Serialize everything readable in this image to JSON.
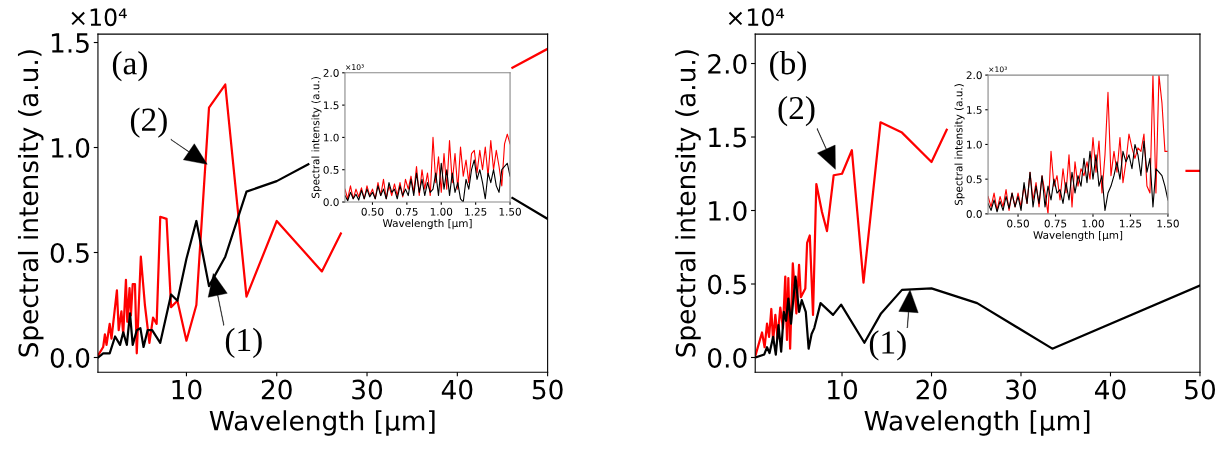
{
  "chart_data": [
    {
      "type": "line",
      "xlabel": "Wavelength [μm]",
      "ylabel": "Spectral intensity (a.u.)",
      "xlim": [
        0.2,
        50
      ],
      "ylim": [
        -0.07,
        1.54
      ],
      "xticks": [
        10,
        20,
        30,
        40,
        50
      ],
      "yticks": [
        {
          "value": 0,
          "label": "0.0"
        },
        {
          "value": 0.5,
          "label": "0.5"
        },
        {
          "value": 1,
          "label": "1.0"
        },
        {
          "value": 1.5,
          "label": "1.5"
        }
      ],
      "grid": false,
      "marker": "none",
      "line_style": "solid",
      "annotations": [
        "×10⁴",
        "(a)",
        {
          "text": "(2)",
          "x": 12.3,
          "y": 0.92
        },
        {
          "text": "(1)",
          "x": 12.97,
          "y": 0.4
        }
      ],
      "series": [
        {
          "color": "#ff0000",
          "x": [
            0.22,
            0.78,
            0.97,
            1.15,
            1.5,
            1.7,
            2.3,
            2.5,
            2.8,
            3.0,
            3.3,
            3.45,
            3.7,
            3.85,
            4.05,
            4.3,
            4.5,
            4.95,
            5.4,
            5.9,
            6.3,
            6.7,
            7.1,
            7.8,
            8.3,
            9.0,
            10.0,
            11.1,
            12.5,
            14.3,
            16.65,
            20.0,
            25.0,
            27.1,
            33.0,
            46.1,
            50.0
          ],
          "values": [
            0.01,
            0.05,
            0.11,
            0.06,
            0.16,
            0.09,
            0.32,
            0.13,
            0.22,
            0.11,
            0.37,
            0.17,
            0.33,
            0.2,
            0.35,
            0.35,
            0.02,
            0.48,
            0.25,
            0.07,
            0.19,
            0.16,
            0.67,
            0.66,
            0.24,
            0.27,
            0.08,
            0.25,
            1.19,
            1.3,
            0.29,
            0.65,
            0.41,
            0.59,
            null,
            1.38,
            1.47
          ]
        },
        {
          "color": "#000000",
          "x": [
            0.22,
            0.78,
            1.5,
            2.1,
            2.65,
            3.0,
            3.4,
            3.75,
            4.05,
            4.5,
            4.9,
            5.25,
            5.7,
            6.2,
            7.1,
            8.3,
            9.0,
            10.0,
            11.1,
            12.5,
            14.3,
            16.65,
            20.0,
            23.5,
            33.0,
            46.1,
            50.0
          ],
          "values": [
            0.0,
            0.02,
            0.02,
            0.1,
            0.06,
            0.12,
            0.06,
            0.21,
            0.06,
            0.13,
            0.14,
            0.05,
            0.13,
            0.13,
            0.07,
            0.3,
            0.27,
            0.47,
            0.65,
            0.34,
            0.48,
            0.79,
            0.84,
            0.92,
            null,
            0.76,
            0.66
          ]
        }
      ]
    },
    {
      "type": "line",
      "xlabel": "Wavelength [μm]",
      "ylabel": "Spectral intensity (a.u.)",
      "xlim": [
        0.3,
        1.5
      ],
      "ylim": [
        0,
        2.0
      ],
      "xticks": [
        {
          "value": 0.5,
          "label": "0.50"
        },
        {
          "value": 0.75,
          "label": "0.75"
        },
        {
          "value": 1.0,
          "label": "1.00"
        },
        {
          "value": 1.25,
          "label": "1.25"
        },
        {
          "value": 1.5,
          "label": "1.50"
        }
      ],
      "yticks": [
        {
          "value": 0,
          "label": "0.0"
        },
        {
          "value": 0.5,
          "label": "0.5"
        },
        {
          "value": 1,
          "label": "1.0"
        },
        {
          "value": 1.5,
          "label": "1.5"
        },
        {
          "value": 2,
          "label": "2.0"
        }
      ],
      "grid": false,
      "marker": "none",
      "line_style": "solid",
      "annotations": [
        "×10³"
      ],
      "series": [
        {
          "color": "#ff0000",
          "x": [
            0.3,
            0.32,
            0.34,
            0.36,
            0.38,
            0.4,
            0.42,
            0.44,
            0.46,
            0.48,
            0.5,
            0.52,
            0.54,
            0.56,
            0.58,
            0.6,
            0.62,
            0.64,
            0.66,
            0.68,
            0.7,
            0.72,
            0.74,
            0.76,
            0.78,
            0.8,
            0.82,
            0.84,
            0.86,
            0.88,
            0.9,
            0.92,
            0.94,
            0.96,
            0.98,
            1.0,
            1.02,
            1.04,
            1.06,
            1.08,
            1.1,
            1.12,
            1.14,
            1.16,
            1.18,
            1.2,
            1.22,
            1.24,
            1.26,
            1.28,
            1.3,
            1.32,
            1.34,
            1.36,
            1.38,
            1.4,
            1.42,
            1.44,
            1.46,
            1.48,
            1.5
          ],
          "values": [
            0.2,
            0.05,
            0.25,
            0.05,
            0.2,
            0.08,
            0.22,
            0.05,
            0.25,
            0.1,
            0.2,
            0.05,
            0.3,
            0.1,
            0.35,
            0.05,
            0.25,
            0.1,
            0.28,
            0.1,
            0.3,
            0.08,
            0.35,
            0.2,
            0.4,
            0.15,
            0.55,
            0.1,
            0.5,
            0.2,
            0.45,
            0.1,
            1.0,
            0.3,
            0.7,
            0.15,
            0.75,
            0.2,
            0.95,
            0.3,
            0.75,
            0.2,
            0.85,
            0.4,
            0.65,
            0.3,
            0.75,
            0.8,
            0.45,
            0.8,
            0.5,
            0.85,
            0.4,
            0.95,
            0.5,
            0.8,
            0.55,
            0.25,
            0.9,
            1.05,
            0.9
          ]
        },
        {
          "color": "#000000",
          "x": [
            0.3,
            0.32,
            0.34,
            0.36,
            0.38,
            0.4,
            0.42,
            0.44,
            0.46,
            0.48,
            0.5,
            0.52,
            0.54,
            0.56,
            0.58,
            0.6,
            0.62,
            0.64,
            0.66,
            0.68,
            0.7,
            0.72,
            0.74,
            0.76,
            0.78,
            0.8,
            0.82,
            0.84,
            0.86,
            0.88,
            0.9,
            0.92,
            0.94,
            0.96,
            0.98,
            1.0,
            1.02,
            1.04,
            1.06,
            1.08,
            1.1,
            1.12,
            1.14,
            1.16,
            1.18,
            1.2,
            1.22,
            1.24,
            1.26,
            1.28,
            1.3,
            1.32,
            1.34,
            1.36,
            1.38,
            1.4,
            1.42,
            1.44,
            1.46,
            1.48,
            1.5
          ],
          "values": [
            0.1,
            0.02,
            0.15,
            0.05,
            0.12,
            0.03,
            0.18,
            0.05,
            0.2,
            0.08,
            0.15,
            0.05,
            0.25,
            0.1,
            0.2,
            0.05,
            0.3,
            0.15,
            0.2,
            0.05,
            0.25,
            0.1,
            0.2,
            0.1,
            0.35,
            0.1,
            0.45,
            0.15,
            0.35,
            0.1,
            0.3,
            0.15,
            0.2,
            0.45,
            0.1,
            0.6,
            0.2,
            0.5,
            0.1,
            0.45,
            0.15,
            0.3,
            0.05,
            0.0,
            0.35,
            0.2,
            0.5,
            0.65,
            0.35,
            0.5,
            0.3,
            0.05,
            0.45,
            0.3,
            0.5,
            0.25,
            0.15,
            0.5,
            0.55,
            0.6,
            0.4
          ]
        }
      ]
    },
    {
      "type": "line",
      "xlabel": "Wavelength [μm]",
      "ylabel": "Spectral intensity (a.u.)",
      "xlim": [
        0.3,
        50
      ],
      "ylim": [
        -0.1,
        2.2
      ],
      "xticks": [
        10,
        20,
        30,
        40,
        50
      ],
      "yticks": [
        {
          "value": 0,
          "label": "0.0"
        },
        {
          "value": 0.5,
          "label": "0.5"
        },
        {
          "value": 1,
          "label": "1.0"
        },
        {
          "value": 1.5,
          "label": "1.5"
        },
        {
          "value": 2,
          "label": "2.0"
        }
      ],
      "grid": false,
      "marker": "none",
      "line_style": "solid",
      "annotations": [
        "×10⁴",
        "(b)",
        {
          "text": "(2)",
          "x": 9.26,
          "y": 1.28
        },
        {
          "text": "(1)",
          "x": 17.6,
          "y": 0.46
        }
      ],
      "series": [
        {
          "color": "#ff0000",
          "x": [
            0.31,
            1.06,
            1.35,
            1.62,
            1.85,
            2.1,
            2.3,
            2.55,
            2.8,
            3.1,
            3.4,
            3.66,
            3.85,
            4.0,
            4.2,
            4.5,
            4.9,
            5.2,
            5.4,
            5.9,
            6.1,
            6.4,
            6.76,
            7.13,
            7.76,
            8.32,
            9.07,
            10.0,
            11.1,
            12.4,
            14.3,
            16.7,
            20.0,
            21.7,
            35.0,
            48.5,
            50.0
          ],
          "values": [
            0.01,
            0.17,
            0.07,
            0.23,
            0.14,
            0.33,
            0.11,
            0.29,
            0.13,
            0.34,
            0.2,
            0.55,
            0.12,
            0.54,
            0.06,
            0.64,
            0.3,
            0.63,
            0.41,
            0.47,
            0.78,
            0.83,
            0.29,
            1.18,
            0.99,
            0.86,
            1.24,
            1.25,
            1.41,
            0.51,
            1.6,
            1.53,
            1.33,
            1.55,
            null,
            1.27,
            1.27
          ]
        },
        {
          "color": "#000000",
          "x": [
            0.31,
            1.3,
            1.62,
            1.9,
            2.3,
            2.6,
            2.9,
            3.2,
            3.5,
            3.75,
            4.0,
            4.3,
            4.8,
            5.2,
            5.5,
            5.95,
            6.27,
            6.6,
            6.9,
            7.6,
            9.0,
            9.9,
            12.5,
            14.36,
            16.7,
            20.0,
            25.1,
            33.5,
            50.0
          ],
          "values": [
            0.0,
            0.02,
            0.07,
            0.03,
            0.14,
            0.02,
            0.22,
            0.04,
            0.31,
            0.25,
            0.4,
            0.23,
            0.55,
            0.31,
            0.39,
            0.31,
            0.06,
            0.16,
            0.2,
            0.37,
            0.29,
            0.36,
            0.1,
            0.3,
            0.46,
            0.47,
            0.37,
            0.06,
            0.49
          ]
        }
      ]
    },
    {
      "type": "line",
      "xlabel": "Wavelength [μm]",
      "ylabel": "Spectral intensity (a.u.)",
      "xlim": [
        0.3,
        1.5
      ],
      "ylim": [
        0,
        2.0
      ],
      "xticks": [
        {
          "value": 0.5,
          "label": "0.50"
        },
        {
          "value": 0.75,
          "label": "0.75"
        },
        {
          "value": 1.0,
          "label": "1.00"
        },
        {
          "value": 1.25,
          "label": "1.25"
        },
        {
          "value": 1.5,
          "label": "1.50"
        }
      ],
      "yticks": [
        {
          "value": 0,
          "label": "0.0"
        },
        {
          "value": 0.5,
          "label": "0.5"
        },
        {
          "value": 1,
          "label": "1.0"
        },
        {
          "value": 1.5,
          "label": "1.5"
        },
        {
          "value": 2,
          "label": "2.0"
        }
      ],
      "grid": false,
      "marker": "none",
      "line_style": "solid",
      "annotations": [
        "×10³"
      ],
      "series": [
        {
          "color": "#ff0000",
          "x": [
            0.3,
            0.32,
            0.34,
            0.36,
            0.38,
            0.4,
            0.42,
            0.44,
            0.46,
            0.48,
            0.5,
            0.52,
            0.54,
            0.56,
            0.58,
            0.6,
            0.62,
            0.64,
            0.66,
            0.68,
            0.7,
            0.72,
            0.74,
            0.76,
            0.78,
            0.8,
            0.82,
            0.84,
            0.86,
            0.88,
            0.9,
            0.92,
            0.94,
            0.96,
            0.98,
            1.0,
            1.02,
            1.04,
            1.06,
            1.08,
            1.1,
            1.12,
            1.14,
            1.16,
            1.18,
            1.2,
            1.22,
            1.24,
            1.26,
            1.28,
            1.3,
            1.32,
            1.34,
            1.36,
            1.38,
            1.4,
            1.42,
            1.44,
            1.46,
            1.48,
            1.5
          ],
          "values": [
            0.25,
            0.1,
            0.3,
            0.05,
            0.25,
            0.1,
            0.35,
            0.05,
            0.3,
            0.1,
            0.3,
            0.1,
            0.4,
            0.15,
            0.6,
            0.2,
            0.45,
            0.1,
            0.55,
            0.3,
            0.0,
            0.9,
            0.4,
            0.55,
            0.2,
            0.65,
            0.3,
            0.85,
            0.1,
            0.75,
            0.4,
            0.65,
            0.55,
            0.75,
            0.5,
            1.1,
            0.6,
            1.05,
            0.3,
            0.85,
            1.75,
            0.55,
            0.9,
            0.6,
            1.1,
            0.45,
            0.75,
            1.15,
            0.95,
            0.8,
            0.95,
            0.9,
            1.15,
            0.4,
            0.3,
            2.0,
            0.3,
            2.0,
            1.6,
            0.9,
            0.9
          ]
        },
        {
          "color": "#000000",
          "x": [
            0.3,
            0.32,
            0.34,
            0.36,
            0.38,
            0.4,
            0.42,
            0.44,
            0.46,
            0.48,
            0.5,
            0.52,
            0.54,
            0.56,
            0.58,
            0.6,
            0.62,
            0.64,
            0.66,
            0.68,
            0.7,
            0.72,
            0.74,
            0.76,
            0.78,
            0.8,
            0.82,
            0.84,
            0.86,
            0.88,
            0.9,
            0.92,
            0.94,
            0.96,
            0.98,
            1.0,
            1.02,
            1.04,
            1.06,
            1.08,
            1.1,
            1.12,
            1.14,
            1.16,
            1.18,
            1.2,
            1.22,
            1.24,
            1.26,
            1.28,
            1.3,
            1.32,
            1.34,
            1.36,
            1.38,
            1.4,
            1.42,
            1.44,
            1.46,
            1.48,
            1.5
          ],
          "values": [
            0.15,
            0.05,
            0.2,
            0.03,
            0.18,
            0.05,
            0.25,
            0.08,
            0.3,
            0.1,
            0.25,
            0.05,
            0.45,
            0.15,
            0.6,
            0.1,
            0.4,
            0.15,
            0.55,
            0.1,
            0.4,
            0.2,
            0.5,
            0.3,
            0.35,
            0.15,
            0.45,
            0.2,
            0.6,
            0.3,
            0.55,
            0.4,
            0.8,
            0.45,
            0.9,
            0.5,
            0.85,
            0.4,
            0.55,
            0.05,
            0.3,
            0.4,
            0.55,
            0.75,
            0.5,
            0.9,
            0.75,
            0.85,
            0.65,
            1.0,
            0.85,
            0.55,
            1.05,
            0.6,
            0.8,
            0.1,
            0.65,
            0.6,
            0.55,
            0.4,
            0.2
          ]
        }
      ]
    }
  ]
}
